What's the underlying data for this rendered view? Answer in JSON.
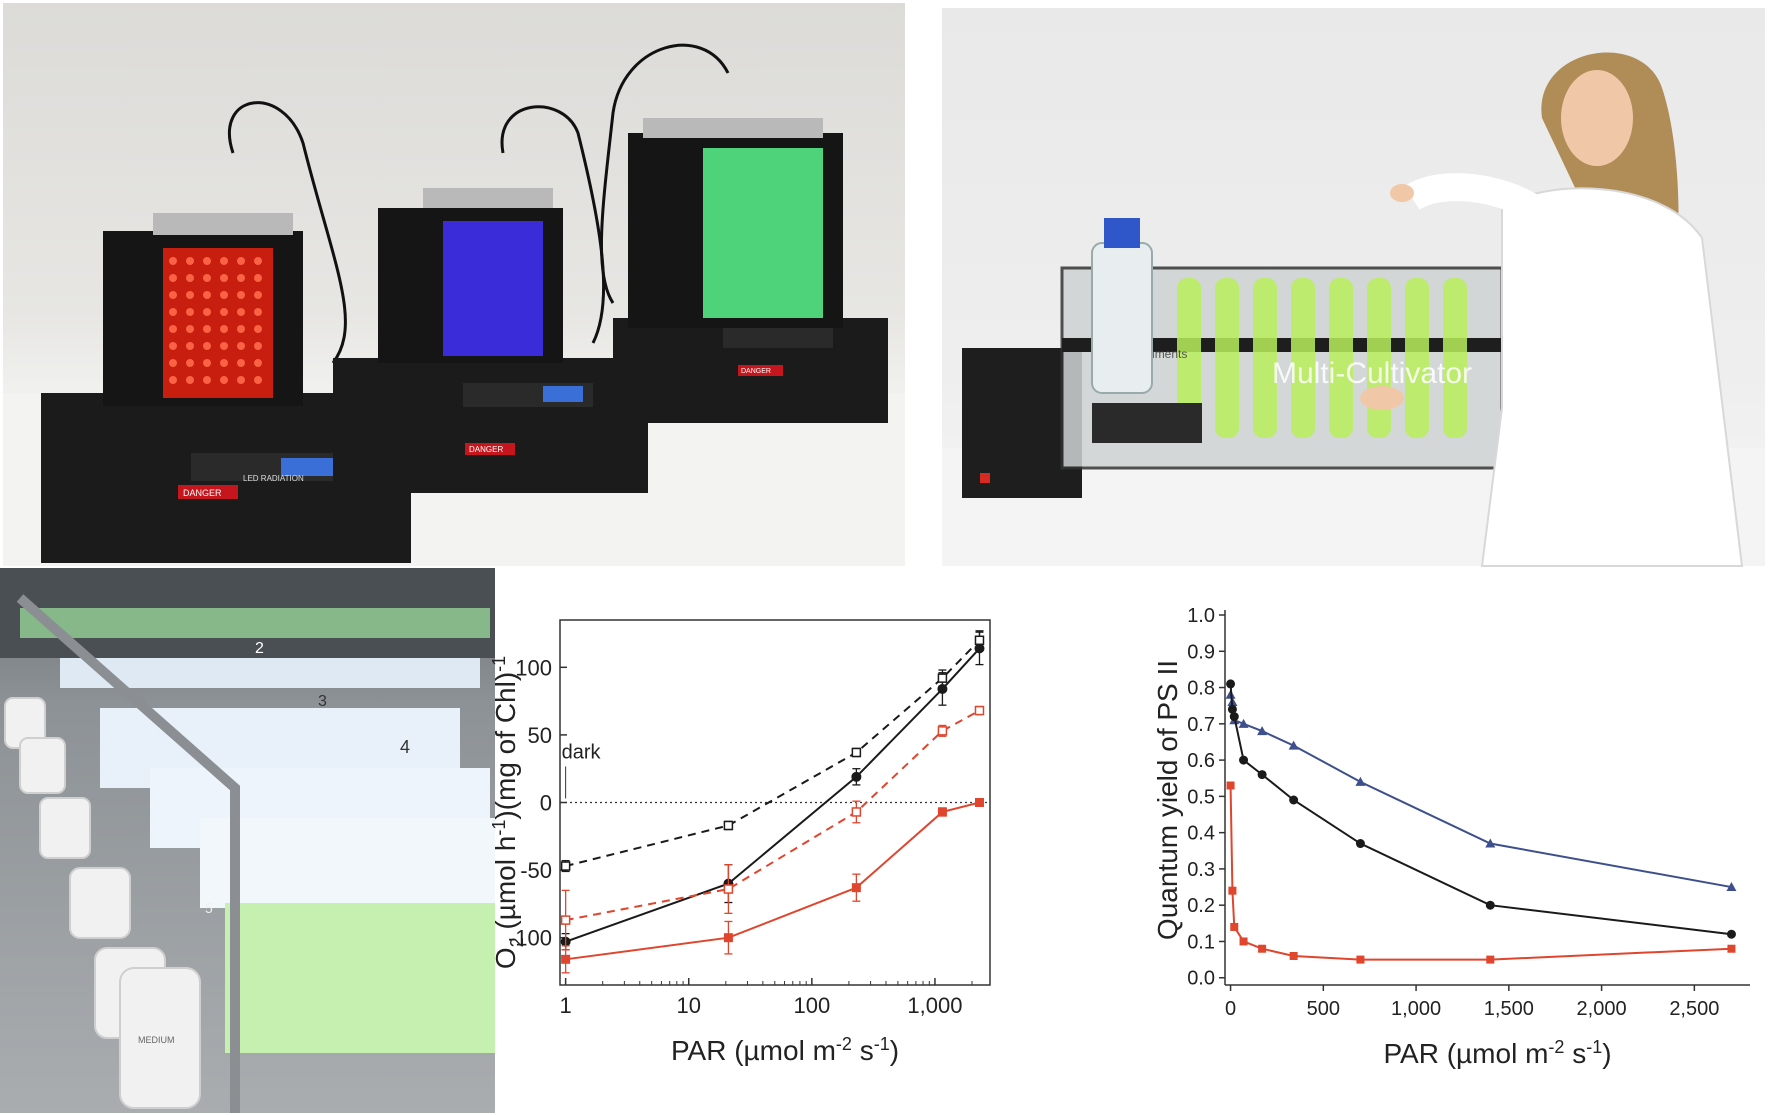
{
  "photos": {
    "photo_a": {
      "labels": [
        "DANGER",
        "LED RADIATION"
      ]
    },
    "photo_b": {
      "brand_text": "Multi-Cultivator",
      "logo_text": "PSI Instruments"
    },
    "photo_c": {
      "panel_numbers": [
        "2",
        "3",
        "4",
        "5"
      ],
      "barrel_label": "MEDIUM"
    }
  },
  "colors": {
    "black_series": "#1a1a1a",
    "red_series": "#e0452d",
    "blue_series": "#3d4f8c"
  },
  "chart_data": [
    {
      "type": "line",
      "x_scale": "log",
      "xlabel": "PAR (µmol m",
      "xlabel_sup": "-2",
      "xlabel_mid": " s",
      "xlabel_sup2": "-1",
      "xlabel_end": ")",
      "ylabel": "O",
      "ylabel_sub": "2",
      "ylabel_rest": " (µmol h",
      "ylabel_sup": "-1",
      "ylabel_rest2": ")(mg of Chl)",
      "ylabel_sup2": "-1",
      "xlim": [
        0.9,
        2800
      ],
      "ylim": [
        -135,
        135
      ],
      "x_ticks": [
        1,
        10,
        100,
        1000
      ],
      "x_tick_labels": [
        "1",
        "10",
        "100",
        "1,000"
      ],
      "y_ticks": [
        -100,
        -50,
        0,
        50,
        100
      ],
      "y_tick_labels": [
        "-100",
        "-50",
        "0",
        "50",
        "100"
      ],
      "annotation": "dark",
      "annotation_point": {
        "x": 1,
        "y": 3
      },
      "zero_line": true,
      "series": [
        {
          "color": "#1a1a1a",
          "style": "solid",
          "marker": "circle-filled",
          "x": [
            1,
            21,
            230,
            1150,
            2300
          ],
          "y": [
            -103,
            -60,
            19,
            84,
            114
          ],
          "err": [
            6,
            14,
            6,
            12,
            12
          ]
        },
        {
          "color": "#1a1a1a",
          "style": "dashed",
          "marker": "square-open",
          "x": [
            1,
            21,
            230,
            1150,
            2300
          ],
          "y": [
            -47,
            -17,
            37,
            92,
            120
          ],
          "err": [
            4,
            3,
            3,
            6,
            7
          ]
        },
        {
          "color": "#e0452d",
          "style": "dashed",
          "marker": "square-open",
          "x": [
            1,
            21,
            230,
            1150,
            2300
          ],
          "y": [
            -87,
            -64,
            -7,
            53,
            68
          ],
          "err": [
            22,
            18,
            8,
            4,
            3
          ]
        },
        {
          "color": "#e0452d",
          "style": "solid",
          "marker": "square-filled",
          "x": [
            1,
            21,
            230,
            1150,
            2300
          ],
          "y": [
            -116,
            -100,
            -63,
            -7,
            0
          ],
          "err": [
            10,
            12,
            10,
            3,
            2
          ]
        }
      ]
    },
    {
      "type": "line",
      "xlabel": "PAR (µmol m",
      "xlabel_sup": "-2",
      "xlabel_mid": " s",
      "xlabel_sup2": "-1",
      "xlabel_end": ")",
      "ylabel": "Quantum yield of PS II",
      "xlim": [
        -30,
        2800
      ],
      "ylim": [
        -0.02,
        1.0
      ],
      "x_ticks": [
        0,
        500,
        1000,
        1500,
        2000,
        2500
      ],
      "x_tick_labels": [
        "0",
        "500",
        "1,000",
        "1,500",
        "2,000",
        "2,500"
      ],
      "y_ticks": [
        0.0,
        0.1,
        0.2,
        0.3,
        0.4,
        0.5,
        0.6,
        0.7,
        0.8,
        0.9,
        1.0
      ],
      "y_tick_labels": [
        "0.0",
        "0.1",
        "0.2",
        "0.3",
        "0.4",
        "0.5",
        "0.6",
        "0.7",
        "0.8",
        "0.9",
        "1.0"
      ],
      "series": [
        {
          "color": "#3d4f8c",
          "marker": "triangle",
          "x": [
            0,
            10,
            20,
            70,
            170,
            340,
            700,
            1400,
            2700
          ],
          "y": [
            0.78,
            0.76,
            0.71,
            0.7,
            0.68,
            0.64,
            0.54,
            0.37,
            0.25
          ]
        },
        {
          "color": "#1a1a1a",
          "marker": "circle",
          "x": [
            0,
            10,
            20,
            70,
            170,
            340,
            700,
            1400,
            2700
          ],
          "y": [
            0.81,
            0.74,
            0.72,
            0.6,
            0.56,
            0.49,
            0.37,
            0.2,
            0.12
          ]
        },
        {
          "color": "#e0452d",
          "marker": "square",
          "x": [
            0,
            10,
            20,
            70,
            170,
            340,
            700,
            1400,
            2700
          ],
          "y": [
            0.53,
            0.24,
            0.14,
            0.1,
            0.08,
            0.06,
            0.05,
            0.05,
            0.08
          ]
        }
      ]
    }
  ]
}
